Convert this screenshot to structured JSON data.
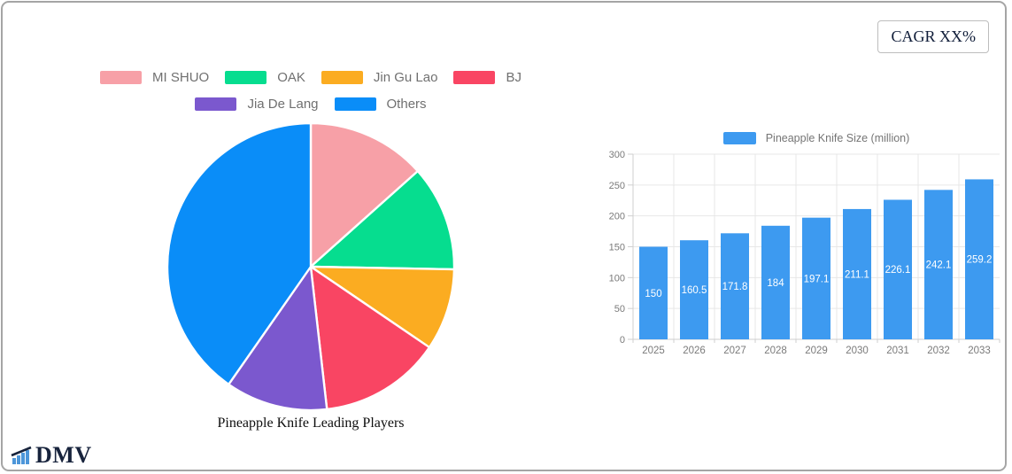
{
  "window": {
    "background": "#ffffff",
    "border_color": "#a5a5a5"
  },
  "cagr_badge": {
    "label": "CAGR XX%"
  },
  "logo": {
    "text": "DMV",
    "color": "#17233c",
    "icon_color": "#4d96d9"
  },
  "chart_data": [
    {
      "type": "pie",
      "title": "Pineapple Knife Leading Players",
      "legend_position": "top",
      "legend_row_item_counts": [
        4,
        2
      ],
      "start_angle_deg": 0,
      "direction": "clockwise",
      "slices": [
        {
          "label": "MI SHUO",
          "percent": 13.4,
          "color": "#f7a0a7"
        },
        {
          "label": "OAK",
          "percent": 11.9,
          "color": "#06dd8f"
        },
        {
          "label": "Jin Gu Lao",
          "percent": 9.2,
          "color": "#fbac21"
        },
        {
          "label": "BJ",
          "percent": 13.7,
          "color": "#f94563"
        },
        {
          "label": "Jia De Lang",
          "percent": 11.5,
          "color": "#7b58ce"
        },
        {
          "label": "Others",
          "percent": 40.3,
          "color": "#0a8df8"
        }
      ]
    },
    {
      "type": "bar",
      "categories": [
        "2025",
        "2026",
        "2027",
        "2028",
        "2029",
        "2030",
        "2031",
        "2032",
        "2033"
      ],
      "series": [
        {
          "name": "Pineapple Knife Size (million)",
          "color": "#3d9af0",
          "values": [
            150,
            160.5,
            171.8,
            184,
            197.1,
            211.1,
            226.1,
            242.1,
            259.2
          ],
          "value_labels": [
            "150",
            "160.5",
            "171.8",
            "184",
            "197.1",
            "211.1",
            "226.1",
            "242.1",
            "259.2"
          ]
        }
      ],
      "ylim": [
        0,
        300
      ],
      "yticks": [
        0,
        50,
        100,
        150,
        200,
        250,
        300
      ],
      "grid": true,
      "legend_position": "top",
      "value_label_style": "white, centered inside bar",
      "axis_label_color": "#7a7a7a"
    }
  ]
}
